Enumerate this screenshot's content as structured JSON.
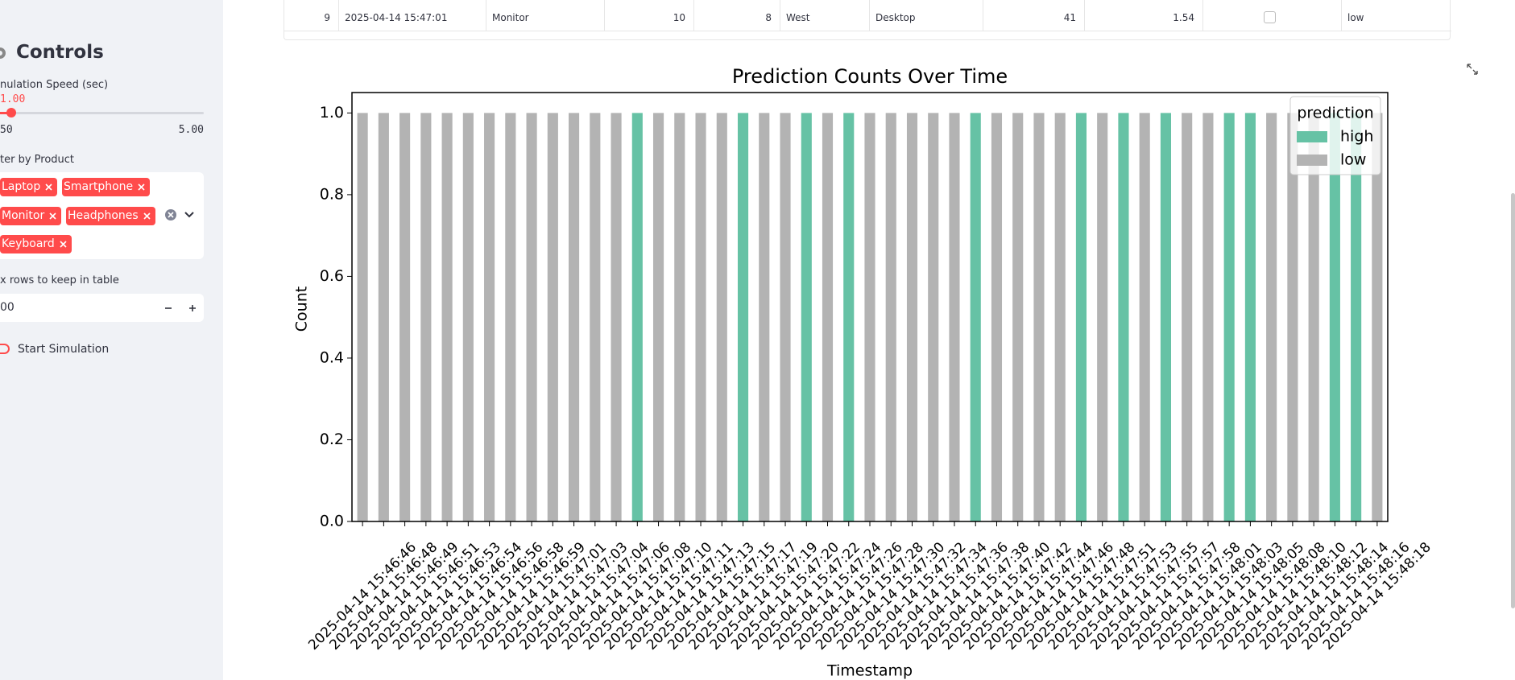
{
  "sidebar": {
    "heading": "Controls",
    "speed_label": "nulation Speed (sec)",
    "speed_value": "1.00",
    "speed_min": "50",
    "speed_max": "5.00",
    "filter_label": "ter by Product",
    "tags": [
      "Laptop",
      "Smartphone",
      "Monitor",
      "Headphones",
      "Keyboard"
    ],
    "rows_label": "x rows to keep in table",
    "rows_value": "00",
    "toggle_label": "Start Simulation"
  },
  "table": {
    "row": [
      "9",
      "2025-04-14 15:47:01",
      "Monitor",
      "10",
      "8",
      "West",
      "Desktop",
      "41",
      "1.54",
      "low"
    ]
  },
  "chart_data": {
    "type": "bar",
    "stacked": true,
    "title": "Prediction Counts Over Time",
    "x_label": "Timestamp",
    "y_label": "Count",
    "legend_title": "prediction",
    "legend": "upper right",
    "categories": [
      "2025-04-14 15:46:46",
      "2025-04-14 15:46:48",
      "2025-04-14 15:46:49",
      "2025-04-14 15:46:51",
      "2025-04-14 15:46:53",
      "2025-04-14 15:46:54",
      "2025-04-14 15:46:56",
      "2025-04-14 15:46:58",
      "2025-04-14 15:46:59",
      "2025-04-14 15:47:01",
      "2025-04-14 15:47:03",
      "2025-04-14 15:47:04",
      "2025-04-14 15:47:06",
      "2025-04-14 15:47:08",
      "2025-04-14 15:47:10",
      "2025-04-14 15:47:11",
      "2025-04-14 15:47:13",
      "2025-04-14 15:47:15",
      "2025-04-14 15:47:17",
      "2025-04-14 15:47:19",
      "2025-04-14 15:47:20",
      "2025-04-14 15:47:22",
      "2025-04-14 15:47:24",
      "2025-04-14 15:47:26",
      "2025-04-14 15:47:28",
      "2025-04-14 15:47:30",
      "2025-04-14 15:47:32",
      "2025-04-14 15:47:34",
      "2025-04-14 15:47:36",
      "2025-04-14 15:47:38",
      "2025-04-14 15:47:40",
      "2025-04-14 15:47:42",
      "2025-04-14 15:47:44",
      "2025-04-14 15:47:46",
      "2025-04-14 15:47:48",
      "2025-04-14 15:47:51",
      "2025-04-14 15:47:53",
      "2025-04-14 15:47:55",
      "2025-04-14 15:47:57",
      "2025-04-14 15:47:58",
      "2025-04-14 15:48:01",
      "2025-04-14 15:48:03",
      "2025-04-14 15:48:05",
      "2025-04-14 15:48:08",
      "2025-04-14 15:48:10",
      "2025-04-14 15:48:12",
      "2025-04-14 15:48:14",
      "2025-04-14 15:48:16",
      "2025-04-14 15:48:18"
    ],
    "series": [
      {
        "name": "high",
        "color": "#66c2a5",
        "values": [
          0,
          0,
          0,
          0,
          0,
          0,
          0,
          0,
          0,
          0,
          0,
          0,
          0,
          1,
          0,
          0,
          0,
          0,
          1,
          0,
          0,
          1,
          0,
          1,
          0,
          0,
          0,
          0,
          0,
          1,
          0,
          0,
          0,
          0,
          1,
          0,
          1,
          0,
          1,
          0,
          0,
          1,
          1,
          0,
          0,
          0,
          1,
          1,
          0
        ]
      },
      {
        "name": "low",
        "color": "#b3b3b3",
        "values": [
          1,
          1,
          1,
          1,
          1,
          1,
          1,
          1,
          1,
          1,
          1,
          1,
          1,
          0,
          1,
          1,
          1,
          1,
          0,
          1,
          1,
          0,
          1,
          0,
          1,
          1,
          1,
          1,
          1,
          0,
          1,
          1,
          1,
          1,
          0,
          1,
          0,
          1,
          0,
          1,
          1,
          0,
          0,
          1,
          1,
          1,
          0,
          0,
          1
        ]
      }
    ],
    "ylim": [
      0,
      1.05
    ],
    "yticks": [
      {
        "value": 0,
        "label": "0.0"
      },
      {
        "value": 0.2,
        "label": "0.2"
      },
      {
        "value": 0.4,
        "label": "0.4"
      },
      {
        "value": 0.6,
        "label": "0.6"
      },
      {
        "value": 0.8,
        "label": "0.8"
      },
      {
        "value": 1,
        "label": "1.0"
      }
    ],
    "grid": false
  }
}
